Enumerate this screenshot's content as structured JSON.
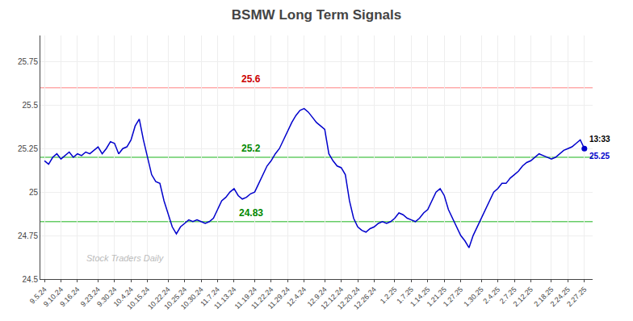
{
  "chart_data": {
    "type": "line",
    "title": "BSMW Long Term Signals",
    "categories": [
      "9.5.24",
      null,
      null,
      null,
      "9.10.24",
      null,
      null,
      null,
      "9.16.24",
      null,
      null,
      null,
      null,
      "9.23.24",
      null,
      null,
      null,
      "9.30.24",
      null,
      null,
      null,
      "10.4.24",
      null,
      null,
      null,
      "10.15.24",
      null,
      null,
      null,
      null,
      "10.22.24",
      null,
      null,
      null,
      "10.25.24",
      null,
      null,
      null,
      "10.30.24",
      null,
      null,
      null,
      "11.7.24",
      null,
      null,
      null,
      "11.13.24",
      null,
      null,
      null,
      null,
      "11.19.24",
      null,
      null,
      null,
      "11.22.24",
      null,
      null,
      null,
      "11.29.24",
      null,
      null,
      null,
      "12.4.24",
      null,
      null,
      null,
      null,
      "12.9.24",
      null,
      null,
      null,
      "12.12.24",
      null,
      null,
      null,
      "12.20.24",
      null,
      null,
      null,
      "12.26.24",
      null,
      null,
      null,
      null,
      "1.2.25",
      null,
      null,
      null,
      "1.7.25",
      null,
      null,
      null,
      "1.14.25",
      null,
      null,
      null,
      "1.21.25",
      null,
      null,
      null,
      "1.27.25",
      null,
      null,
      null,
      null,
      "1.30.25",
      null,
      null,
      null,
      "2.4.25",
      null,
      null,
      null,
      "2.7.25",
      null,
      null,
      null,
      "2.12.25",
      null,
      null,
      null,
      null,
      "2.18.25",
      null,
      null,
      null,
      "2.24.25",
      null,
      null,
      null,
      "2.27.25"
    ],
    "values": [
      25.18,
      25.16,
      25.2,
      25.22,
      25.19,
      25.21,
      25.23,
      25.2,
      25.22,
      25.21,
      25.23,
      25.22,
      25.24,
      25.26,
      25.22,
      25.25,
      25.29,
      25.28,
      25.22,
      25.25,
      25.26,
      25.3,
      25.38,
      25.42,
      25.3,
      25.2,
      25.1,
      25.06,
      25.05,
      24.95,
      24.88,
      24.8,
      24.76,
      24.8,
      24.82,
      24.84,
      24.83,
      24.84,
      24.83,
      24.82,
      24.83,
      24.85,
      24.9,
      24.95,
      24.97,
      25.0,
      25.02,
      24.98,
      24.96,
      24.97,
      24.99,
      25.0,
      25.05,
      25.1,
      25.15,
      25.18,
      25.22,
      25.25,
      25.3,
      25.35,
      25.4,
      25.44,
      25.47,
      25.48,
      25.46,
      25.43,
      25.4,
      25.38,
      25.36,
      25.22,
      25.18,
      25.15,
      25.14,
      25.1,
      24.95,
      24.85,
      24.8,
      24.78,
      24.77,
      24.79,
      24.8,
      24.82,
      24.83,
      24.82,
      24.83,
      24.85,
      24.88,
      24.87,
      24.85,
      24.84,
      24.83,
      24.85,
      24.88,
      24.9,
      24.95,
      25.0,
      25.02,
      24.98,
      24.9,
      24.85,
      24.8,
      24.75,
      24.72,
      24.68,
      24.75,
      24.8,
      24.85,
      24.9,
      24.95,
      25.0,
      25.02,
      25.05,
      25.05,
      25.08,
      25.1,
      25.12,
      25.15,
      25.17,
      25.18,
      25.2,
      25.22,
      25.21,
      25.2,
      25.19,
      25.2,
      25.22,
      25.24,
      25.25,
      25.26,
      25.28,
      25.3,
      25.25
    ],
    "color": "#0000cc",
    "ylim": [
      24.5,
      25.9
    ],
    "yticks": [
      24.5,
      24.75,
      25,
      25.25,
      25.5,
      25.75
    ],
    "grid": true,
    "hlines": [
      {
        "value": 25.6,
        "label": "25.6",
        "color": "#ffaaaa",
        "label_color": "#cc0000"
      },
      {
        "value": 25.2,
        "label": "25.2",
        "color": "#66cc66",
        "label_color": "#008800"
      },
      {
        "value": 24.83,
        "label": "24.83",
        "color": "#66cc66",
        "label_color": "#008800"
      }
    ],
    "last_point": {
      "time": "13:33",
      "label": "25.25",
      "color": "#0000cc"
    },
    "watermark": "Stock Traders Daily",
    "watermark_color": "#bbbbbb"
  }
}
